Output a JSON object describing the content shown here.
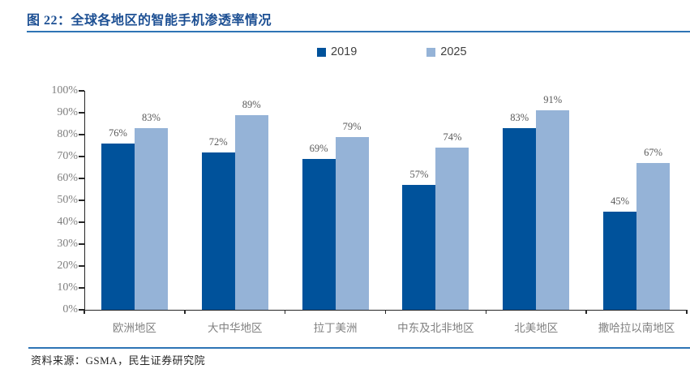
{
  "figure": {
    "title": "图 22：全球各地区的智能手机渗透率情况",
    "source": "资料来源：GSMA，民生证券研究院"
  },
  "colors": {
    "accent_rule_blue": "#2E74B5",
    "title_blue": "#1C4F93",
    "series_2019": "#00529B",
    "series_2025": "#95B3D7",
    "axis_line": "#262626",
    "axis_tick_label": "#808080",
    "data_label": "#595959"
  },
  "chart_data": {
    "type": "bar",
    "title": "全球各地区的智能手机渗透率情况",
    "categories": [
      "欧洲地区",
      "大中华地区",
      "拉丁美洲",
      "中东及北非地区",
      "北美地区",
      "撒哈拉以南地区"
    ],
    "series": [
      {
        "name": "2019",
        "color": "#00529B",
        "values": [
          76,
          72,
          69,
          57,
          83,
          45
        ]
      },
      {
        "name": "2025",
        "color": "#95B3D7",
        "values": [
          83,
          89,
          79,
          74,
          91,
          67
        ]
      }
    ],
    "value_suffix": "%",
    "ylim": [
      0,
      100
    ],
    "ytick_step": 10,
    "ytick_labels": [
      "0%",
      "10%",
      "20%",
      "30%",
      "40%",
      "50%",
      "60%",
      "70%",
      "80%",
      "90%",
      "100%"
    ],
    "grid": false,
    "legend_position": "top",
    "data_labels": true
  }
}
